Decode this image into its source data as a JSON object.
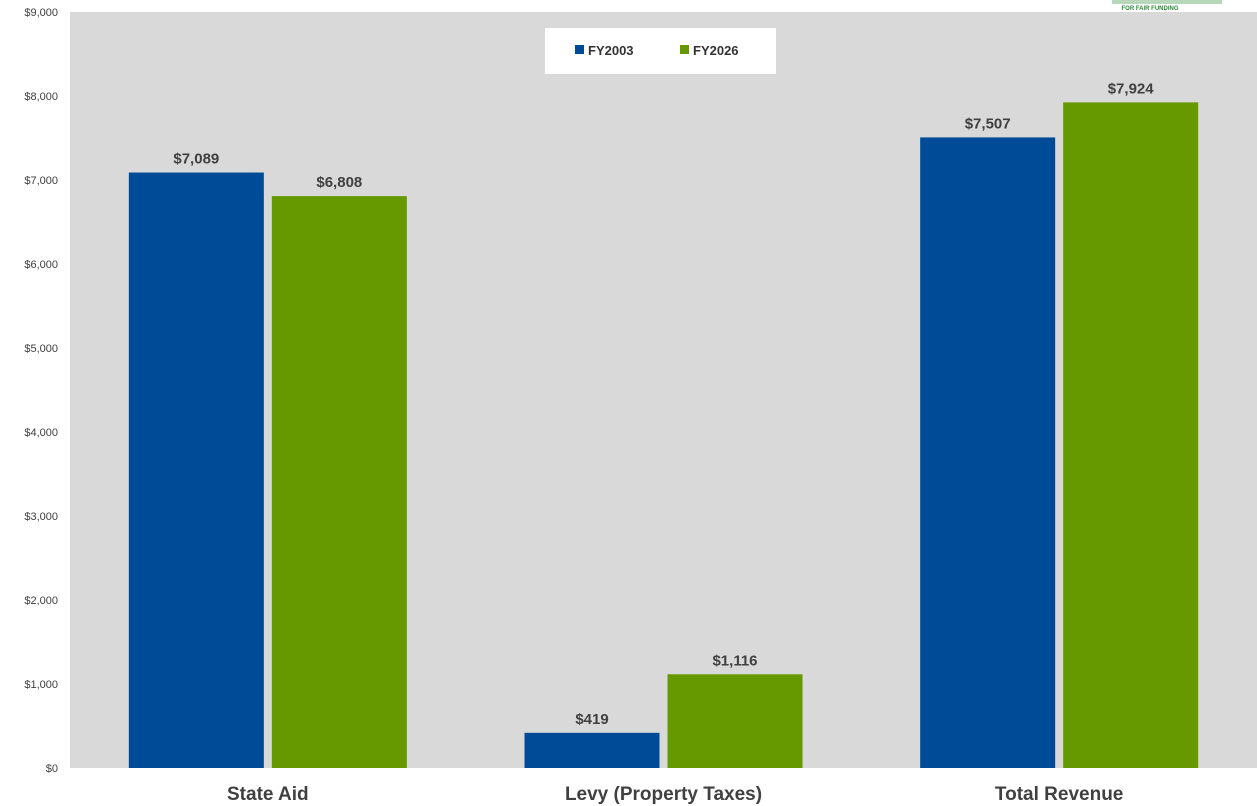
{
  "logo": {
    "text": "FOR FAIR FUNDING"
  },
  "chart_data": {
    "type": "bar",
    "title": "",
    "xlabel": "",
    "ylabel": "",
    "categories": [
      "State Aid",
      "Levy (Property Taxes)",
      "Total Revenue"
    ],
    "series": [
      {
        "name": "FY2003",
        "color": "#004b97",
        "values": [
          7089,
          419,
          7507
        ],
        "labels": [
          "$7,089",
          "$419",
          "$7,507"
        ]
      },
      {
        "name": "FY2026",
        "color": "#669900",
        "values": [
          6808,
          1116,
          7924
        ],
        "labels": [
          "$6,808",
          "$1,116",
          "$7,924"
        ]
      }
    ],
    "ylim": [
      0,
      9000
    ],
    "yticks": [
      0,
      1000,
      2000,
      3000,
      4000,
      5000,
      6000,
      7000,
      8000,
      9000
    ],
    "ytick_labels": [
      "$0",
      "$1,000",
      "$2,000",
      "$3,000",
      "$4,000",
      "$5,000",
      "$6,000",
      "$7,000",
      "$8,000",
      "$9,000"
    ],
    "plot_background": "#d9d9d9",
    "grid": false,
    "legend_position": "top-center"
  }
}
